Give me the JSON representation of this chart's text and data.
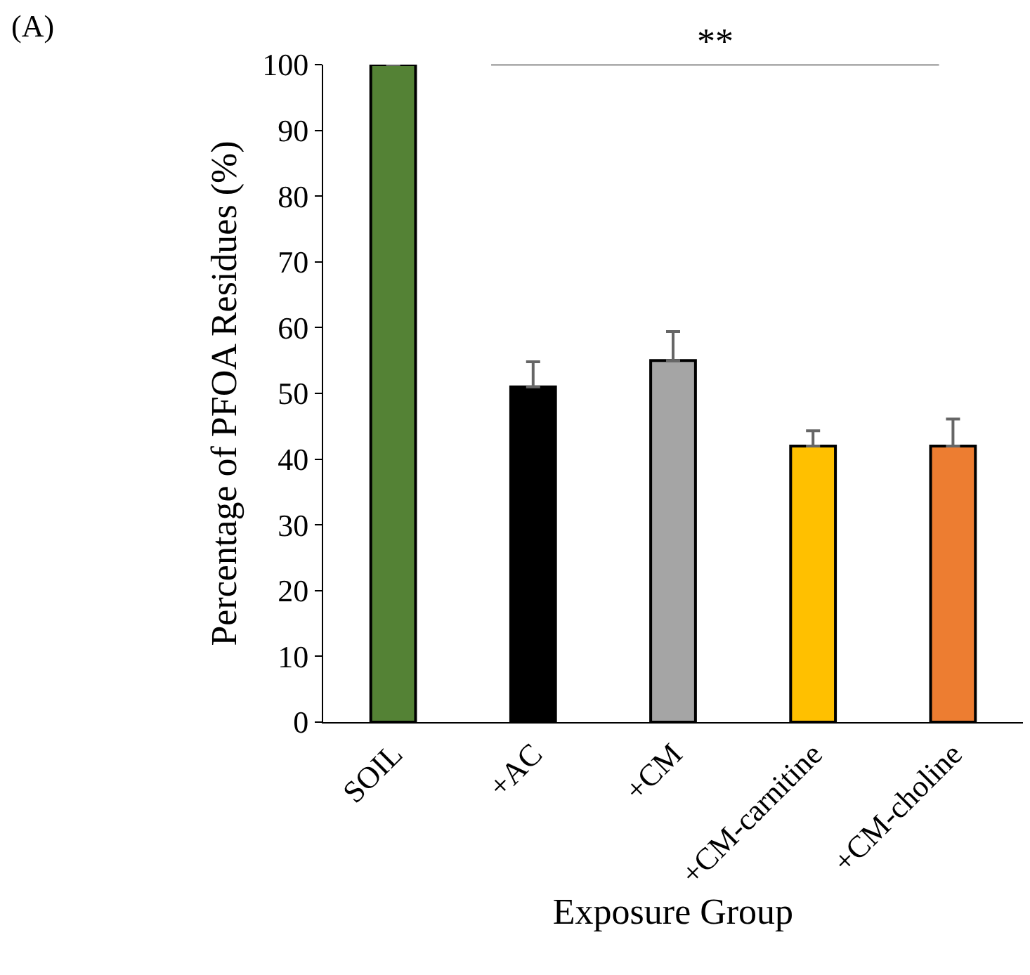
{
  "chart_data": {
    "type": "bar",
    "categories": [
      "SOIL",
      "+AC",
      "+CM",
      "+CM-carnitine",
      "+CM-choline"
    ],
    "values": [
      100,
      51,
      55,
      42,
      42
    ],
    "colors": [
      "#548235",
      "#000000",
      "#a5a5a5",
      "#ffc000",
      "#ed7d31"
    ],
    "errors": [
      null,
      [
        51,
        54.8
      ],
      [
        55,
        59.4
      ],
      [
        42,
        44.3
      ],
      [
        42,
        46.1
      ]
    ],
    "xlabel": "Exposure Group",
    "ylabel": "Percentage of PFOA Residues (%)",
    "ylim": [
      0,
      100
    ],
    "yticks": [
      0,
      10,
      20,
      30,
      40,
      50,
      60,
      70,
      80,
      90,
      100
    ],
    "annotations": [
      "(A)",
      "**"
    ]
  }
}
